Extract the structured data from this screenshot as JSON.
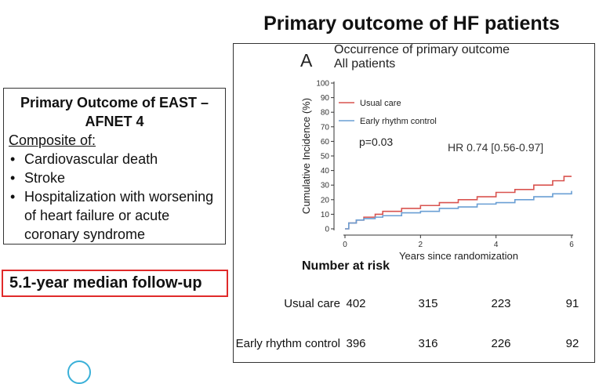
{
  "slide_title": "Primary outcome of HF patients",
  "outcome_box": {
    "title": "Primary Outcome of EAST – AFNET 4",
    "composite_label": "Composite of:",
    "items": [
      "Cardiovascular death",
      "Stroke",
      "Hospitalization with worsening of heart failure or acute coronary syndrome"
    ]
  },
  "followup": "5.1-year median follow-up",
  "chart_data": {
    "type": "line",
    "panel_letter": "A",
    "title": "Occurrence of primary outcome",
    "subtitle": "All patients",
    "xlabel": "Years since randomization",
    "ylabel": "Cumulative Incidence (%)",
    "xlim": [
      0,
      6
    ],
    "ylim": [
      0,
      100
    ],
    "xticks": [
      0,
      2,
      4,
      6
    ],
    "yticks": [
      0,
      10,
      20,
      30,
      40,
      50,
      60,
      70,
      80,
      90,
      100
    ],
    "legend_position": "top-left",
    "grid": false,
    "series": [
      {
        "name": "Usual care",
        "color": "#d9534f",
        "x": [
          0,
          0.1,
          0.3,
          0.5,
          0.8,
          1.0,
          1.5,
          2.0,
          2.5,
          3.0,
          3.5,
          4.0,
          4.5,
          5.0,
          5.5,
          5.8,
          6.0
        ],
        "y": [
          0,
          4,
          6,
          8,
          10,
          12,
          14,
          16,
          18,
          20,
          22,
          25,
          27,
          30,
          33,
          36,
          36
        ]
      },
      {
        "name": "Early rhythm control",
        "color": "#6a9fd4",
        "x": [
          0,
          0.1,
          0.3,
          0.5,
          0.8,
          1.0,
          1.5,
          2.0,
          2.5,
          3.0,
          3.5,
          4.0,
          4.5,
          5.0,
          5.5,
          6.0
        ],
        "y": [
          0,
          4,
          6,
          7,
          8,
          9,
          11,
          12,
          14,
          15,
          17,
          18,
          20,
          22,
          24,
          26
        ]
      }
    ],
    "annotations": {
      "p_value": "p=0.03",
      "hr": "HR 0.74 [0.56-0.97]"
    }
  },
  "risk_table": {
    "heading": "Number at risk",
    "rows": [
      {
        "label": "Usual care",
        "values": [
          "402",
          "315",
          "223",
          "91"
        ]
      },
      {
        "label": "Early rhythm control",
        "values": [
          "396",
          "316",
          "226",
          "92"
        ]
      }
    ]
  }
}
